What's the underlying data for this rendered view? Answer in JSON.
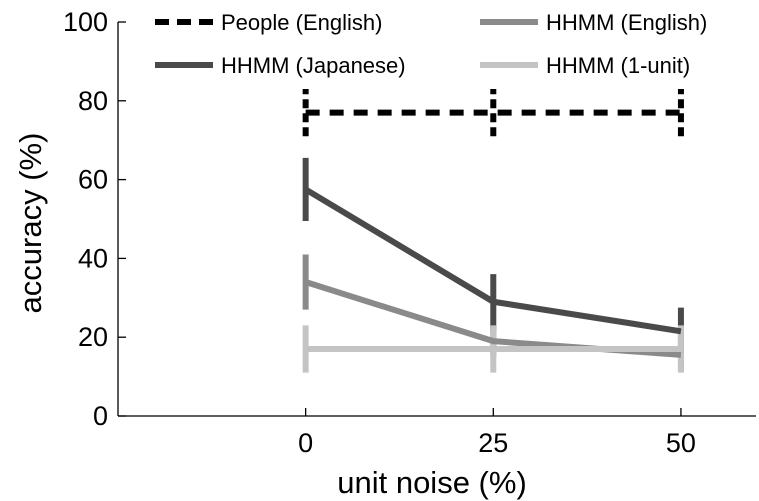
{
  "chart_data": {
    "type": "line",
    "xlabel": "unit noise (%)",
    "ylabel": "accuracy (%)",
    "x": [
      0,
      25,
      50
    ],
    "x_ticks": [
      "0",
      "25",
      "50"
    ],
    "xlim": [
      -25,
      60
    ],
    "ylim": [
      0,
      100
    ],
    "y_ticks": [
      0,
      20,
      40,
      60,
      80,
      100
    ],
    "grid": false,
    "legend_position": "top",
    "series": [
      {
        "name": "People (English)",
        "color": "#000000",
        "dash": true,
        "values": [
          77,
          77,
          77
        ],
        "error": [
          6,
          6,
          6
        ]
      },
      {
        "name": "HHMM (English)",
        "color": "#8a8a8a",
        "dash": false,
        "values": [
          34,
          19,
          15.5
        ],
        "error": [
          7,
          4,
          4
        ]
      },
      {
        "name": "HHMM (Japanese)",
        "color": "#4a4a4a",
        "dash": false,
        "values": [
          57.5,
          29,
          21.5
        ],
        "error": [
          8,
          7,
          6
        ]
      },
      {
        "name": "HHMM (1-unit)",
        "color": "#c4c4c4",
        "dash": false,
        "values": [
          17,
          17,
          17
        ],
        "error": [
          6,
          6,
          6
        ]
      }
    ],
    "legend_order": [
      0,
      1,
      2,
      3
    ]
  }
}
